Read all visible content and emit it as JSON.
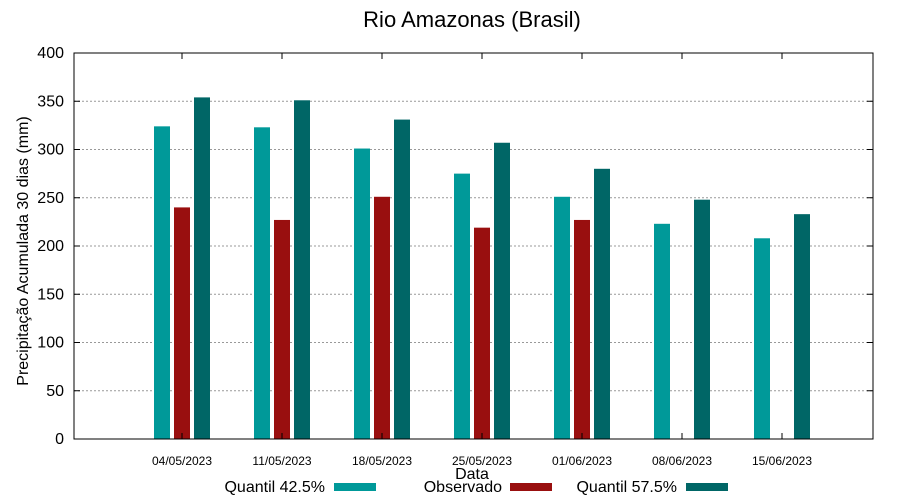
{
  "chart_data": {
    "type": "bar",
    "title": "Rio Amazonas (Brasil)",
    "xlabel": "Data",
    "ylabel": "Precipitação Acumulada 30 dias (mm)",
    "ylim": [
      0,
      400
    ],
    "yticks": [
      0,
      50,
      100,
      150,
      200,
      250,
      300,
      350,
      400
    ],
    "grid": true,
    "legend_position": "bottom",
    "categories": [
      "04/05/2023",
      "11/05/2023",
      "18/05/2023",
      "25/05/2023",
      "01/06/2023",
      "08/06/2023",
      "15/06/2023"
    ],
    "series": [
      {
        "name": "Quantil 42.5%",
        "color": "#009999",
        "values": [
          324,
          323,
          301,
          275,
          251,
          223,
          208
        ]
      },
      {
        "name": "Observado",
        "color": "#990f0f",
        "values": [
          240,
          227,
          251,
          219,
          227,
          null,
          null
        ]
      },
      {
        "name": "Quantil 57.5%",
        "color": "#006666",
        "values": [
          354,
          351,
          331,
          307,
          280,
          248,
          233
        ]
      }
    ]
  }
}
